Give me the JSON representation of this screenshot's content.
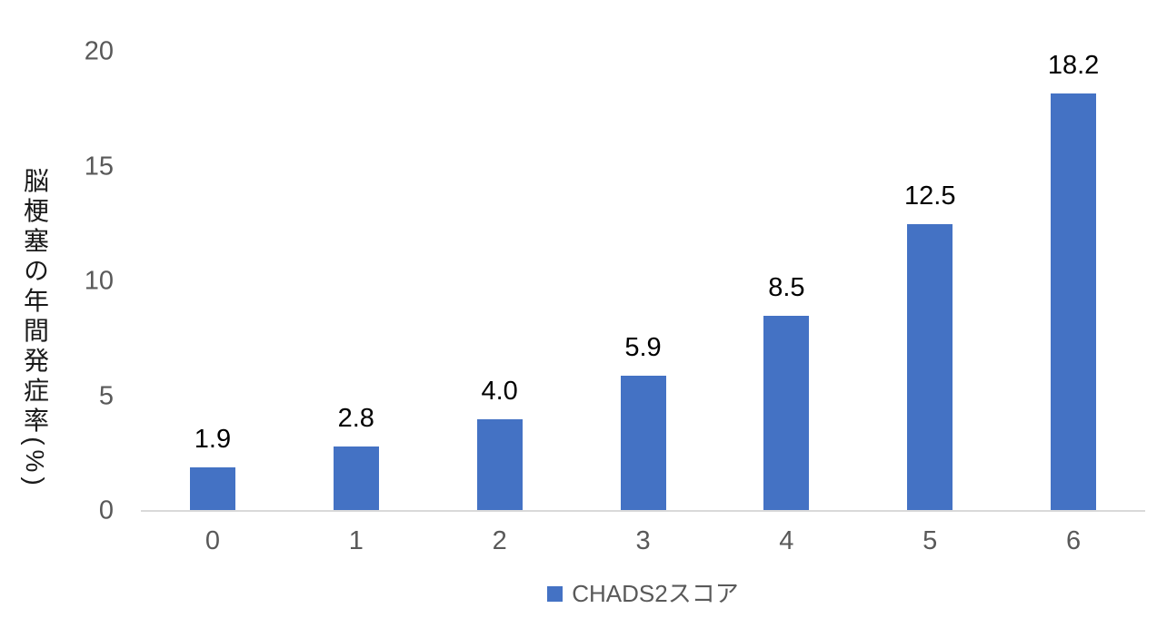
{
  "chart_data": {
    "type": "bar",
    "title": "",
    "categories": [
      "0",
      "1",
      "2",
      "3",
      "4",
      "5",
      "6"
    ],
    "values": [
      1.9,
      2.8,
      4.0,
      5.9,
      8.5,
      12.5,
      18.2
    ],
    "value_labels": [
      "1.9",
      "2.8",
      "4.0",
      "5.9",
      "8.5",
      "12.5",
      "18.2"
    ],
    "xlabel": "",
    "ylabel": "脳梗塞の年間発症率(%)",
    "ylim": [
      0,
      20
    ],
    "yticks": [
      0,
      5,
      10,
      15,
      20
    ],
    "grid": false,
    "legend": {
      "label": "CHADS2スコア",
      "position": "bottom-center",
      "marker": "square"
    },
    "colors": {
      "bar": "#4472C4",
      "axis_line": "#D9D9D9",
      "tick_label": "#595959",
      "x_label": "#595959",
      "data_label": "#000000",
      "y_axis_title": "#1a1a1a",
      "legend_label": "#595959",
      "background": "#ffffff"
    }
  }
}
